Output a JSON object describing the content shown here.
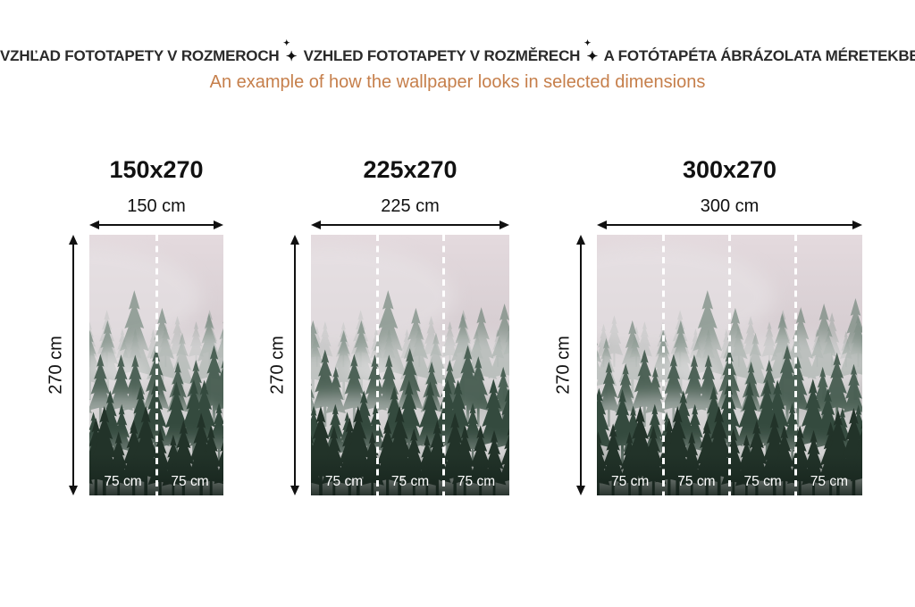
{
  "header": {
    "title_parts": [
      "VZHĽAD FOTOTAPETY V ROZMEROCH",
      "VZHLED FOTOTAPETY V ROZMĚRECH",
      "A FOTÓTAPÉTA ÁBRÁZOLATA MÉRETEKBEN"
    ],
    "separator_icon": "✦",
    "title_color": "#2a2a2a",
    "subtitle": "An example of how the wallpaper looks in selected dimensions",
    "subtitle_color": "#c67f4b"
  },
  "sizes": [
    {
      "title": "150x270",
      "width_label": "150 cm",
      "height_label": "270 cm",
      "panels": [
        "75 cm",
        "75 cm"
      ]
    },
    {
      "title": "225x270",
      "width_label": "225 cm",
      "height_label": "270 cm",
      "panels": [
        "75 cm",
        "75 cm",
        "75 cm"
      ]
    },
    {
      "title": "300x270",
      "width_label": "300 cm",
      "height_label": "270 cm",
      "panels": [
        "75 cm",
        "75 cm",
        "75 cm",
        "75 cm"
      ]
    }
  ],
  "style": {
    "arrow_color": "#111111",
    "panel_divider_color": "#ffffff",
    "panel_label_color": "#ffffff"
  }
}
